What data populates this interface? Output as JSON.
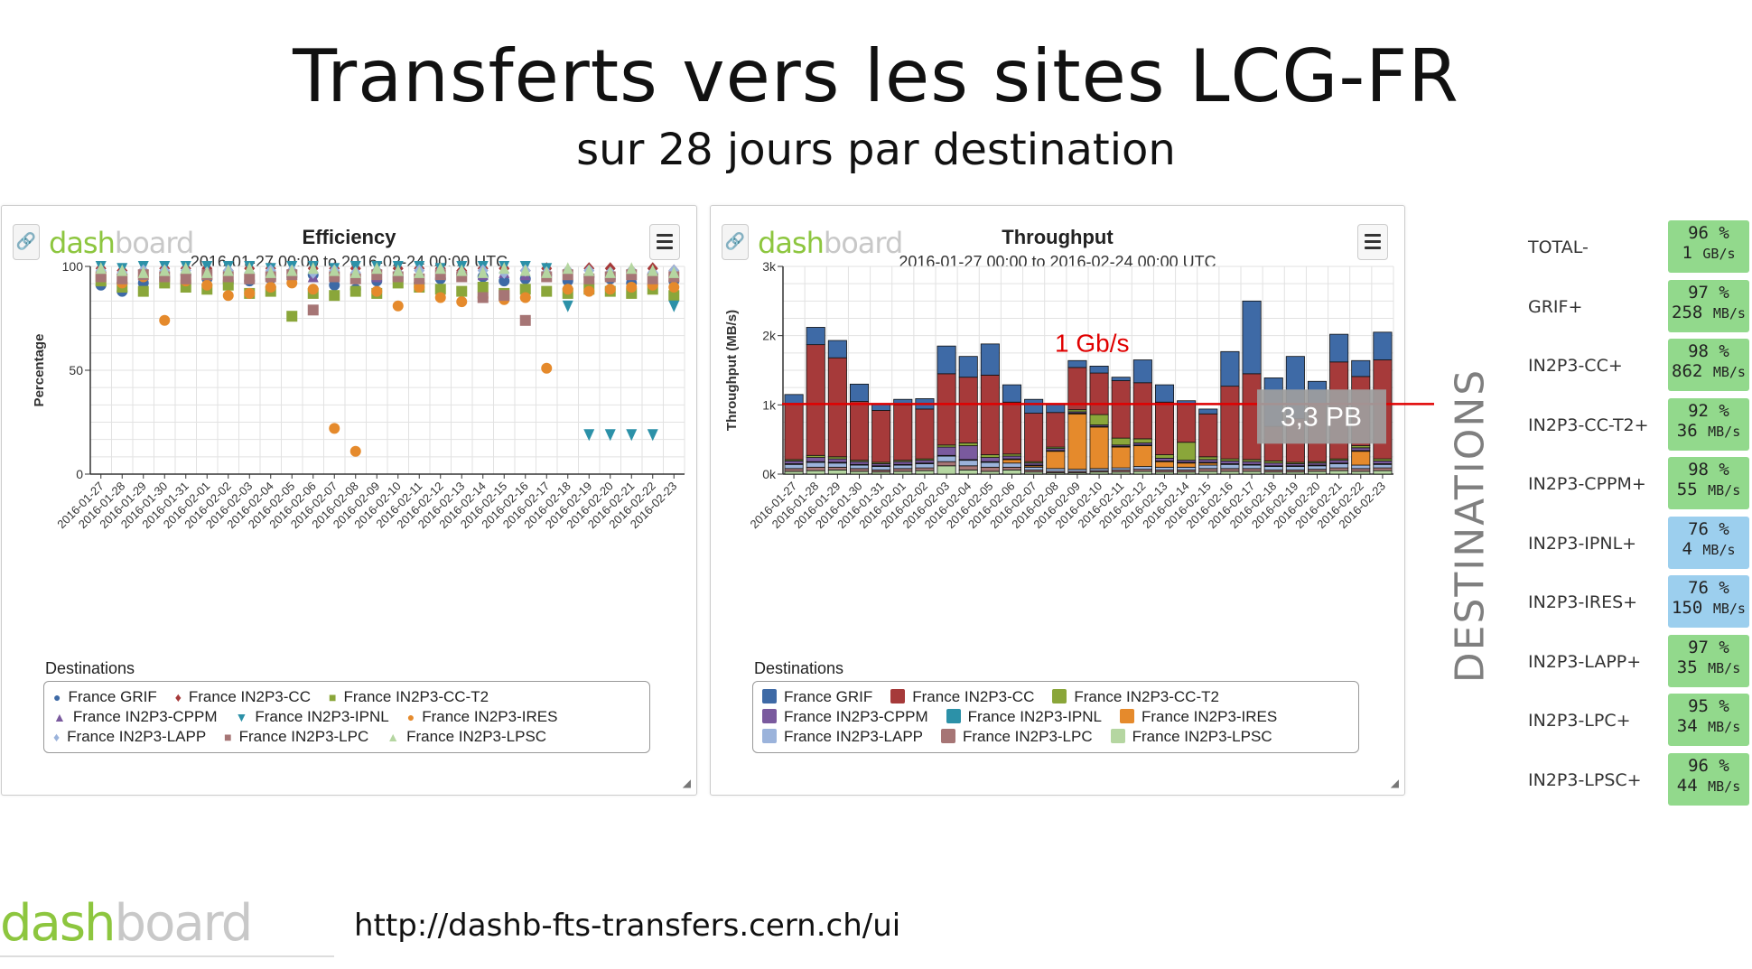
{
  "slide": {
    "title": "Transferts vers les sites LCG-FR",
    "subtitle": "sur 28 jours par destination",
    "url": "http://dashb-fts-transfers.cern.ch/ui",
    "logo_a": "dash",
    "logo_b": "board",
    "destinations_label": "DESTINATIONS"
  },
  "colors": {
    "GRIF": "#3e6aa6",
    "IN2P3-CC": "#a63a3a",
    "IN2P3-CC-T2": "#8aa63a",
    "IN2P3-CPPM": "#7a5a9e",
    "IN2P3-IPNL": "#2c91a8",
    "IN2P3-IRES": "#e58a2c",
    "IN2P3-LAPP": "#9bb3db",
    "IN2P3-LPC": "#a67575",
    "IN2P3-LPSC": "#b5d6a1",
    "green_box": "#92d98c",
    "blue_box": "#9ccfee",
    "red": "#e00000"
  },
  "legend": {
    "title": "Destinations",
    "items": [
      "France GRIF",
      "France IN2P3-CC",
      "France IN2P3-CC-T2",
      "France IN2P3-CPPM",
      "France IN2P3-IPNL",
      "France IN2P3-IRES",
      "France IN2P3-LAPP",
      "France IN2P3-LPC",
      "France IN2P3-LPSC"
    ]
  },
  "summary": [
    {
      "name": "TOTAL-",
      "pct": "96 %",
      "rate": "1",
      "unit": "GB/s",
      "status": "green"
    },
    {
      "name": "GRIF+",
      "pct": "97 %",
      "rate": "258",
      "unit": "MB/s",
      "status": "green"
    },
    {
      "name": "IN2P3-CC+",
      "pct": "98 %",
      "rate": "862",
      "unit": "MB/s",
      "status": "green"
    },
    {
      "name": "IN2P3-CC-T2+",
      "pct": "92 %",
      "rate": "36",
      "unit": "MB/s",
      "status": "green"
    },
    {
      "name": "IN2P3-CPPM+",
      "pct": "98 %",
      "rate": "55",
      "unit": "MB/s",
      "status": "green"
    },
    {
      "name": "IN2P3-IPNL+",
      "pct": "76 %",
      "rate": "4",
      "unit": "MB/s",
      "status": "blue"
    },
    {
      "name": "IN2P3-IRES+",
      "pct": "76 %",
      "rate": "150",
      "unit": "MB/s",
      "status": "blue"
    },
    {
      "name": "IN2P3-LAPP+",
      "pct": "97 %",
      "rate": "35",
      "unit": "MB/s",
      "status": "green"
    },
    {
      "name": "IN2P3-LPC+",
      "pct": "95 %",
      "rate": "34",
      "unit": "MB/s",
      "status": "green"
    },
    {
      "name": "IN2P3-LPSC+",
      "pct": "96 %",
      "rate": "44",
      "unit": "MB/s",
      "status": "green"
    }
  ],
  "chart_data": [
    {
      "type": "scatter",
      "title": "Efficiency",
      "subtitle": "2016-01-27 00:00 to 2016-02-24 00:00 UTC",
      "ylabel": "Percentage",
      "ylim": [
        0,
        100
      ],
      "yticks": [
        "0",
        "50",
        "100"
      ],
      "categories": [
        "2016-01-27",
        "2016-01-28",
        "2016-01-29",
        "2016-01-30",
        "2016-01-31",
        "2016-02-01",
        "2016-02-02",
        "2016-02-03",
        "2016-02-04",
        "2016-02-05",
        "2016-02-06",
        "2016-02-07",
        "2016-02-08",
        "2016-02-09",
        "2016-02-10",
        "2016-02-11",
        "2016-02-12",
        "2016-02-13",
        "2016-02-14",
        "2016-02-15",
        "2016-02-16",
        "2016-02-17",
        "2016-02-18",
        "2016-02-19",
        "2016-02-20",
        "2016-02-21",
        "2016-02-22",
        "2016-02-23"
      ],
      "series": [
        {
          "name": "France GRIF",
          "marker": "circle",
          "values": [
            91,
            88,
            92,
            95,
            96,
            94,
            92,
            93,
            94,
            95,
            96,
            91,
            89,
            93,
            95,
            92,
            94,
            96,
            95,
            93,
            94,
            96,
            93,
            95,
            94,
            92,
            96,
            93
          ]
        },
        {
          "name": "France IN2P3-CC",
          "marker": "diamond",
          "values": [
            99,
            98,
            98,
            99,
            99,
            99,
            98,
            99,
            99,
            98,
            99,
            99,
            99,
            98,
            99,
            99,
            99,
            98,
            99,
            99,
            98,
            99,
            98,
            99,
            99,
            98,
            99,
            98
          ]
        },
        {
          "name": "France IN2P3-CC-T2",
          "marker": "square",
          "values": [
            93,
            90,
            88,
            92,
            90,
            89,
            91,
            87,
            88,
            76,
            87,
            86,
            88,
            87,
            92,
            90,
            89,
            88,
            90,
            87,
            89,
            88,
            87,
            89,
            88,
            87,
            89,
            86
          ]
        },
        {
          "name": "France IN2P3-CPPM",
          "marker": "triangle",
          "values": [
            97,
            95,
            96,
            97,
            96,
            97,
            95,
            96,
            97,
            96,
            95,
            97,
            96,
            95,
            97,
            96,
            97,
            95,
            96,
            97,
            96,
            97,
            96,
            95,
            97,
            96,
            95,
            97
          ]
        },
        {
          "name": "France IN2P3-IPNL",
          "marker": "triangle-down",
          "values": [
            100,
            99,
            100,
            100,
            100,
            100,
            100,
            100,
            99,
            100,
            100,
            99,
            100,
            100,
            100,
            100,
            99,
            100,
            100,
            100,
            100,
            99,
            81,
            19,
            19,
            19,
            19,
            81
          ]
        },
        {
          "name": "France IN2P3-IRES",
          "marker": "circle",
          "values": [
            96,
            92,
            95,
            74,
            93,
            91,
            86,
            87,
            90,
            92,
            89,
            22,
            11,
            88,
            81,
            90,
            85,
            83,
            85,
            84,
            85,
            51,
            89,
            88,
            89,
            90,
            91,
            90
          ]
        },
        {
          "name": "France IN2P3-LAPP",
          "marker": "diamond",
          "values": [
            98,
            97,
            98,
            98,
            98,
            97,
            98,
            97,
            98,
            98,
            97,
            98,
            97,
            98,
            97,
            98,
            98,
            97,
            98,
            97,
            98,
            97,
            98,
            98,
            97,
            98,
            97,
            98
          ]
        },
        {
          "name": "France IN2P3-LPC",
          "marker": "square",
          "values": [
            95,
            94,
            96,
            95,
            94,
            96,
            95,
            94,
            95,
            96,
            79,
            95,
            94,
            96,
            95,
            94,
            96,
            95,
            85,
            86,
            74,
            95,
            96,
            94,
            95,
            96,
            94,
            95
          ]
        },
        {
          "name": "France IN2P3-LPSC",
          "marker": "triangle",
          "values": [
            99,
            98,
            97,
            98,
            99,
            97,
            98,
            99,
            97,
            98,
            99,
            98,
            97,
            99,
            98,
            97,
            99,
            98,
            97,
            99,
            98,
            97,
            99,
            98,
            97,
            99,
            98,
            97
          ]
        }
      ]
    },
    {
      "type": "bar",
      "stacked": true,
      "title": "Throughput",
      "subtitle": "2016-01-27 00:00 to 2016-02-24 00:00 UTC",
      "ylabel": "Throughput (MB/s)",
      "ylim": [
        0,
        3000
      ],
      "yticks": [
        "0k",
        "1k",
        "2k",
        "3k"
      ],
      "annotation_line_label": "1 Gb/s",
      "annotation_line_value": 1000,
      "annotation_box_label": "3,3 PB",
      "categories": [
        "2016-01-27",
        "2016-01-28",
        "2016-01-29",
        "2016-01-30",
        "2016-01-31",
        "2016-02-01",
        "2016-02-02",
        "2016-02-03",
        "2016-02-04",
        "2016-02-05",
        "2016-02-06",
        "2016-02-07",
        "2016-02-08",
        "2016-02-09",
        "2016-02-10",
        "2016-02-11",
        "2016-02-12",
        "2016-02-13",
        "2016-02-14",
        "2016-02-15",
        "2016-02-16",
        "2016-02-17",
        "2016-02-18",
        "2016-02-19",
        "2016-02-20",
        "2016-02-21",
        "2016-02-22",
        "2016-02-23"
      ],
      "series": [
        {
          "name": "France IN2P3-LPSC",
          "values": [
            40,
            50,
            60,
            40,
            30,
            40,
            50,
            120,
            60,
            40,
            60,
            30,
            20,
            20,
            30,
            30,
            40,
            30,
            30,
            40,
            40,
            40,
            30,
            30,
            40,
            50,
            40,
            50
          ]
        },
        {
          "name": "France IN2P3-LPC",
          "values": [
            40,
            50,
            40,
            40,
            30,
            40,
            40,
            60,
            60,
            60,
            40,
            30,
            20,
            20,
            20,
            30,
            30,
            30,
            30,
            40,
            40,
            40,
            30,
            30,
            30,
            40,
            40,
            40
          ]
        },
        {
          "name": "France IN2P3-LAPP",
          "values": [
            60,
            70,
            60,
            50,
            50,
            50,
            60,
            80,
            80,
            70,
            60,
            40,
            40,
            30,
            30,
            30,
            40,
            40,
            40,
            50,
            60,
            50,
            50,
            50,
            50,
            60,
            50,
            50
          ]
        },
        {
          "name": "France IN2P3-IRES",
          "values": [
            0,
            0,
            0,
            0,
            0,
            0,
            0,
            0,
            0,
            0,
            50,
            20,
            250,
            800,
            600,
            300,
            300,
            80,
            60,
            30,
            0,
            0,
            0,
            0,
            0,
            0,
            200,
            0
          ]
        },
        {
          "name": "France IN2P3-IPNL",
          "values": [
            10,
            10,
            10,
            10,
            10,
            10,
            10,
            10,
            10,
            10,
            10,
            10,
            10,
            10,
            10,
            10,
            10,
            10,
            10,
            10,
            10,
            10,
            10,
            10,
            10,
            10,
            10,
            10
          ]
        },
        {
          "name": "France IN2P3-CPPM",
          "values": [
            40,
            60,
            50,
            40,
            30,
            40,
            40,
            120,
            200,
            60,
            40,
            30,
            30,
            20,
            20,
            20,
            30,
            40,
            30,
            40,
            40,
            40,
            40,
            30,
            30,
            40,
            40,
            40
          ]
        },
        {
          "name": "France IN2P3-CC-T2",
          "values": [
            20,
            30,
            30,
            20,
            20,
            20,
            20,
            30,
            40,
            40,
            30,
            20,
            20,
            30,
            150,
            100,
            60,
            50,
            260,
            40,
            30,
            30,
            30,
            20,
            20,
            20,
            30,
            30
          ]
        },
        {
          "name": "France IN2P3-CC",
          "values": [
            810,
            1600,
            1430,
            850,
            750,
            800,
            720,
            1030,
            950,
            1150,
            750,
            700,
            500,
            610,
            600,
            830,
            810,
            760,
            550,
            620,
            1050,
            1240,
            500,
            630,
            830,
            1400,
            1000,
            1430
          ]
        },
        {
          "name": "France GRIF",
          "values": [
            130,
            250,
            250,
            250,
            100,
            80,
            150,
            400,
            300,
            450,
            250,
            200,
            130,
            100,
            100,
            50,
            330,
            250,
            50,
            70,
            500,
            1050,
            700,
            900,
            330,
            400,
            230,
            400
          ]
        }
      ]
    }
  ]
}
